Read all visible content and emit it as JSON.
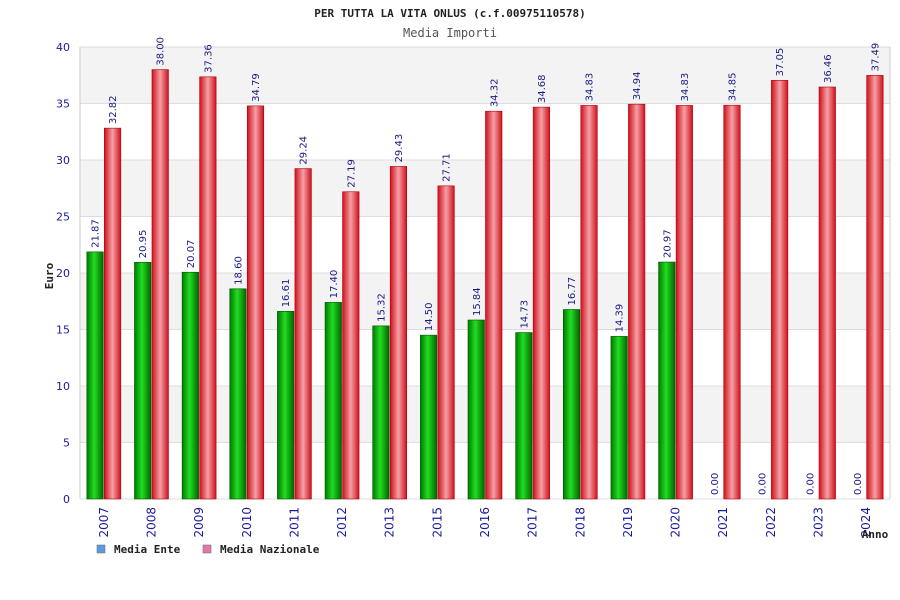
{
  "chart_data": {
    "type": "bar",
    "title": "PER TUTTA LA VITA ONLUS (c.f.00975110578)",
    "subtitle": "Media Importi",
    "ylabel": "Euro",
    "xlabel": "Anno",
    "ylim": [
      0,
      40
    ],
    "yticks": [
      0,
      5,
      10,
      15,
      20,
      25,
      30,
      35,
      40
    ],
    "grid": true,
    "legend_position": "bottom-left",
    "categories": [
      "2007",
      "2008",
      "2009",
      "2010",
      "2011",
      "2012",
      "2013",
      "2015",
      "2016",
      "2017",
      "2018",
      "2019",
      "2020",
      "2021",
      "2022",
      "2023",
      "2024"
    ],
    "series": [
      {
        "name": "Media Ente",
        "color": "#00aa00",
        "legend_color": "#5b9be0",
        "values": [
          21.87,
          20.95,
          20.07,
          18.6,
          16.61,
          17.4,
          15.32,
          14.5,
          15.84,
          14.73,
          16.77,
          14.39,
          20.97,
          0.0,
          0.0,
          0.0,
          0.0
        ],
        "labels": [
          "21.87",
          "20.95",
          "20.07",
          "18.60",
          "16.61",
          "17.40",
          "15.32",
          "14.50",
          "15.84",
          "14.73",
          "16.77",
          "14.39",
          "20.97",
          "0.00",
          "0.00",
          "0.00",
          "0.00"
        ]
      },
      {
        "name": "Media Nazionale",
        "color": "#e8202a",
        "legend_color": "#e07aa8",
        "values": [
          32.82,
          38.0,
          37.36,
          34.79,
          29.24,
          27.19,
          29.43,
          27.71,
          34.32,
          34.68,
          34.83,
          34.94,
          34.83,
          34.85,
          37.05,
          36.46,
          37.49
        ],
        "labels": [
          "32.82",
          "38.00",
          "37.36",
          "34.79",
          "29.24",
          "27.19",
          "29.43",
          "27.71",
          "34.32",
          "34.68",
          "34.83",
          "34.94",
          "34.83",
          "34.85",
          "37.05",
          "36.46",
          "37.49"
        ]
      }
    ]
  }
}
